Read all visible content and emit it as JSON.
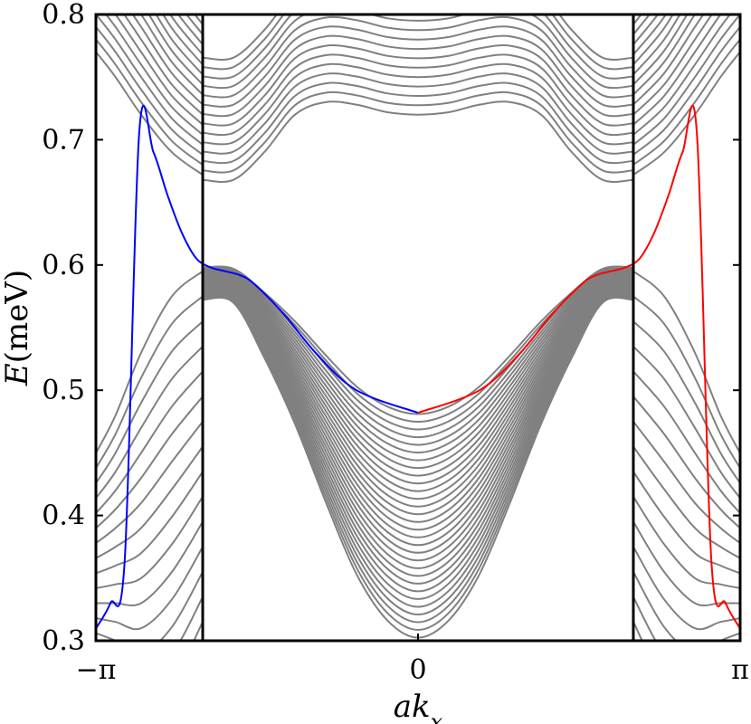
{
  "chart_data": {
    "type": "line",
    "xlabel": "ak_x",
    "ylabel": "E(meV)",
    "xlim": [
      -3.14159,
      3.14159
    ],
    "ylim": [
      0.3,
      0.8
    ],
    "xticks": [
      {
        "value": -3.14159,
        "label": "−π"
      },
      {
        "value": 0,
        "label": "0"
      },
      {
        "value": 3.14159,
        "label": "π"
      }
    ],
    "yticks": [
      {
        "value": 0.3,
        "label": "0.3"
      },
      {
        "value": 0.4,
        "label": "0.4"
      },
      {
        "value": 0.5,
        "label": "0.5"
      },
      {
        "value": 0.6,
        "label": "0.6"
      },
      {
        "value": 0.7,
        "label": "0.7"
      },
      {
        "value": 0.8,
        "label": "0.8"
      }
    ],
    "vertical_lines": [
      -2.1,
      2.1
    ],
    "grid": false,
    "series": [
      {
        "color": "#0000ff",
        "x": [
          -3.14,
          -3.0,
          -2.86,
          -2.72,
          -2.58,
          -2.44,
          -2.3,
          -2.16,
          -2.02,
          -1.88,
          -1.74,
          -1.6,
          -1.3,
          -1.0,
          -0.6,
          0.0
        ],
        "y": [
          0.31,
          0.33,
          0.365,
          0.705,
          0.69,
          0.655,
          0.625,
          0.605,
          0.598,
          0.595,
          0.592,
          0.585,
          0.56,
          0.53,
          0.5,
          0.482
        ]
      },
      {
        "color": "#ff0000",
        "x": [
          0.0,
          0.6,
          1.0,
          1.3,
          1.6,
          1.74,
          1.88,
          2.02,
          2.16,
          2.3,
          2.44,
          2.58,
          2.72,
          2.86,
          3.0,
          3.14
        ],
        "y": [
          0.482,
          0.5,
          0.53,
          0.56,
          0.585,
          0.592,
          0.595,
          0.598,
          0.605,
          0.625,
          0.655,
          0.69,
          0.705,
          0.365,
          0.33,
          0.31
        ]
      },
      {
        "color": "#808080",
        "band": "conduction",
        "count": 14,
        "x": [
          -2.1,
          -1.8,
          -1.5,
          -1.2,
          -0.9,
          -0.6,
          -0.3,
          0.0,
          0.3,
          0.6,
          0.9,
          1.2,
          1.5,
          1.8,
          2.1
        ],
        "y": [
          0.668,
          0.668,
          0.69,
          0.72,
          0.73,
          0.728,
          0.722,
          0.72,
          0.722,
          0.728,
          0.73,
          0.72,
          0.69,
          0.668,
          0.668
        ]
      },
      {
        "color": "#808080",
        "band": "valence",
        "count": 30,
        "x": [
          -2.1,
          -1.8,
          -1.5,
          -1.2,
          -0.9,
          -0.6,
          -0.3,
          0.0,
          0.3,
          0.6,
          0.9,
          1.2,
          1.5,
          1.8,
          2.1
        ],
        "y": [
          0.598,
          0.597,
          0.578,
          0.555,
          0.528,
          0.503,
          0.487,
          0.481,
          0.487,
          0.503,
          0.528,
          0.555,
          0.578,
          0.597,
          0.598
        ]
      }
    ]
  }
}
